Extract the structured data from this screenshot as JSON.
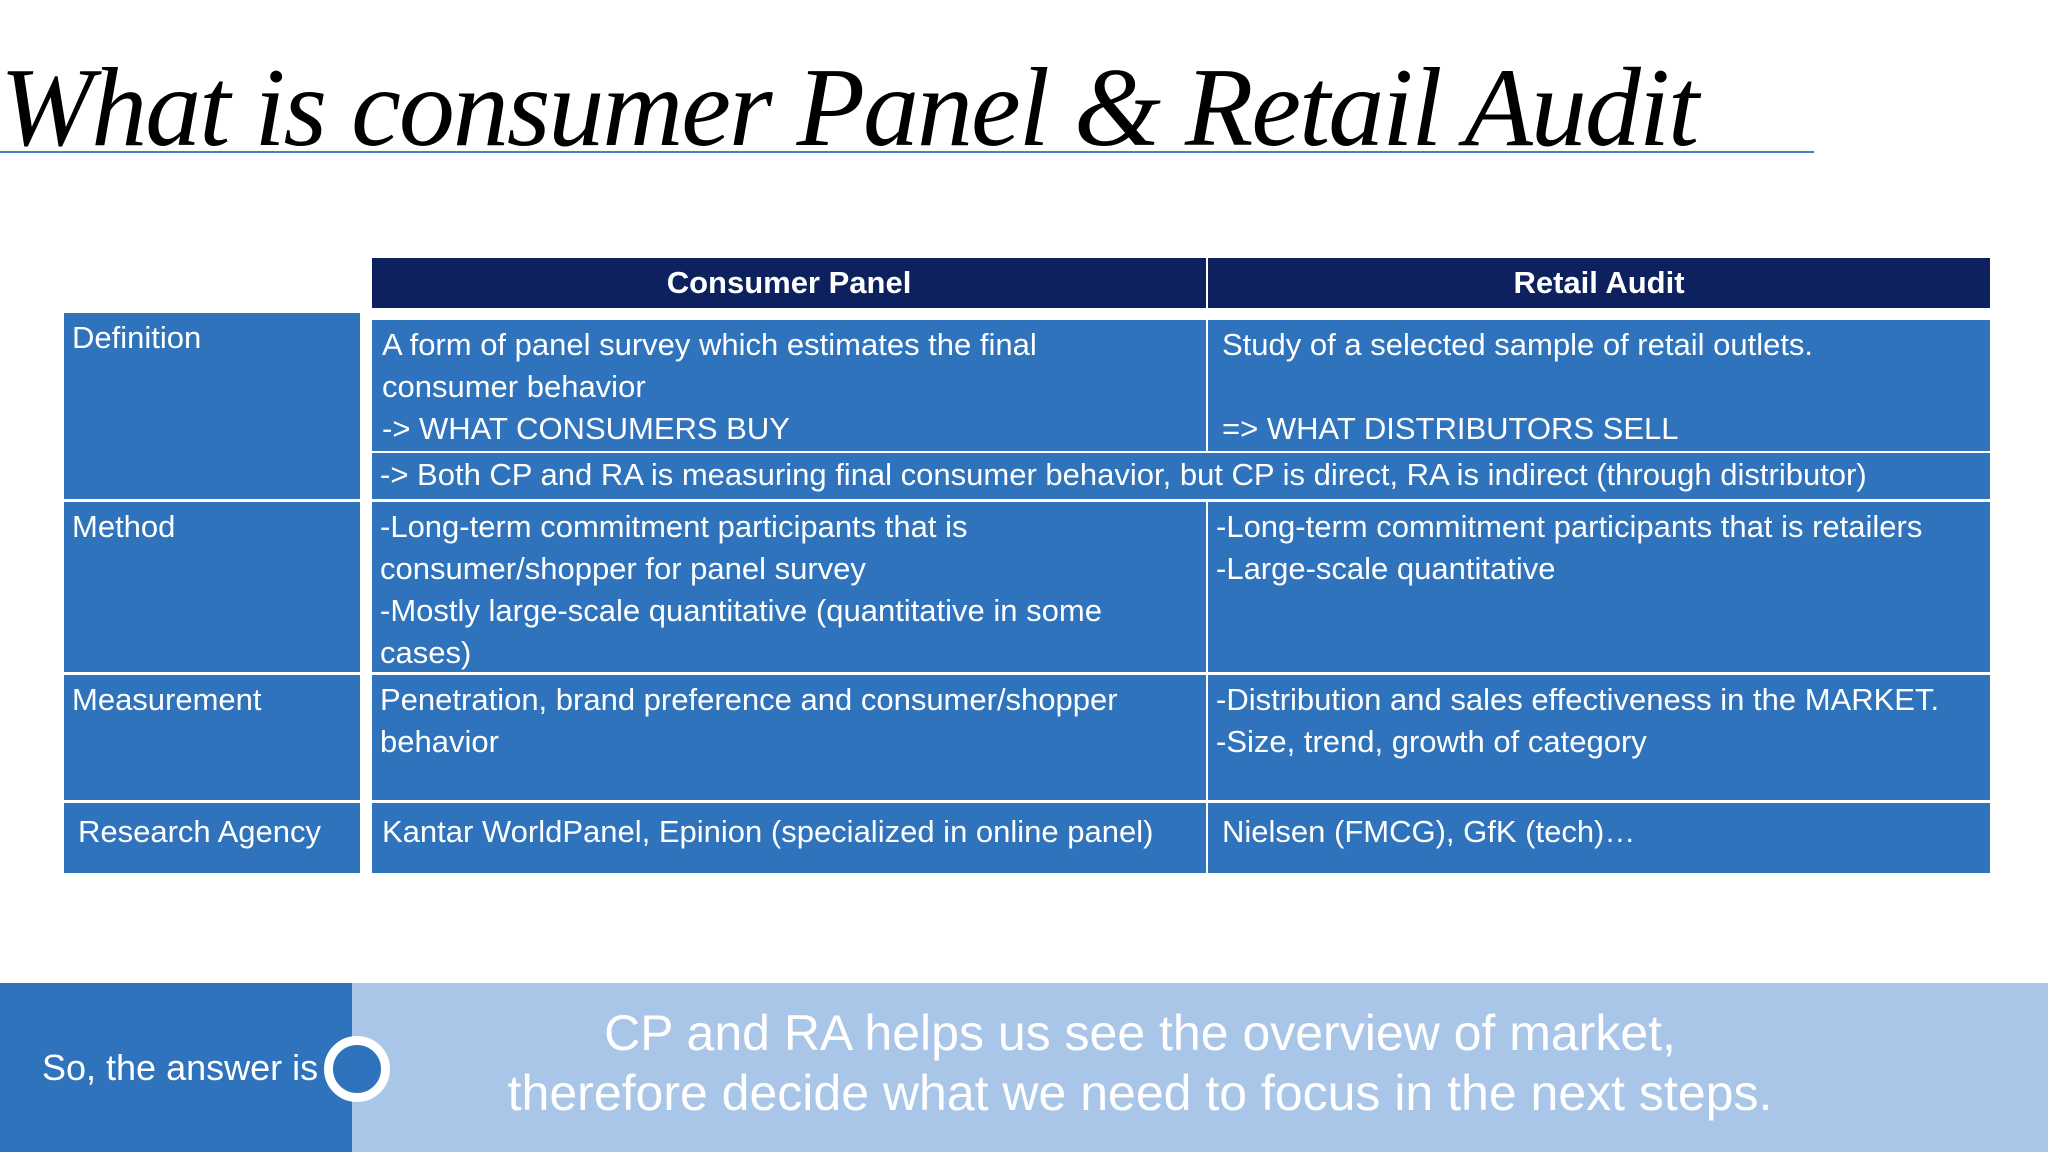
{
  "title": "What is consumer Panel & Retail Audit",
  "table": {
    "headers": {
      "consumer_panel": "Consumer Panel",
      "retail_audit": "Retail Audit"
    },
    "rows": {
      "definition": {
        "label": "Definition",
        "cp": [
          "A form of panel survey which estimates the final",
          "consumer behavior",
          "-> WHAT CONSUMERS BUY"
        ],
        "ra": [
          "Study of a selected sample of retail outlets.",
          "",
          "=> WHAT DISTRIBUTORS SELL"
        ],
        "note": "-> Both CP and RA is measuring final consumer behavior, but CP is direct, RA is indirect (through distributor)"
      },
      "method": {
        "label": "Method",
        "cp": [
          "-Long-term commitment participants that is",
          "consumer/shopper for panel survey",
          "-Mostly large-scale quantitative (quantitative in some",
          "cases)"
        ],
        "ra": [
          "-Long-term commitment participants that is retailers",
          "-Large-scale quantitative"
        ]
      },
      "measurement": {
        "label": "Measurement",
        "cp": [
          "Penetration, brand preference and consumer/shopper",
          "behavior"
        ],
        "ra": [
          "-Distribution and sales effectiveness in the MARKET.",
          "-Size, trend, growth of category"
        ]
      },
      "research_agency": {
        "label": "Research Agency",
        "cp": "Kantar WorldPanel, Epinion (specialized in online panel)",
        "ra": "Nielsen (FMCG), GfK (tech)…"
      }
    }
  },
  "footer": {
    "label": "So, the answer is",
    "message": [
      "CP and RA helps us see the overview of market,",
      "therefore decide what we need to focus in the next steps."
    ]
  },
  "colors": {
    "header_bg": "#0d215e",
    "cell_bg": "#2f73bc",
    "footer_light": "#a9c6e8",
    "title_rule": "#4a7fc8"
  }
}
